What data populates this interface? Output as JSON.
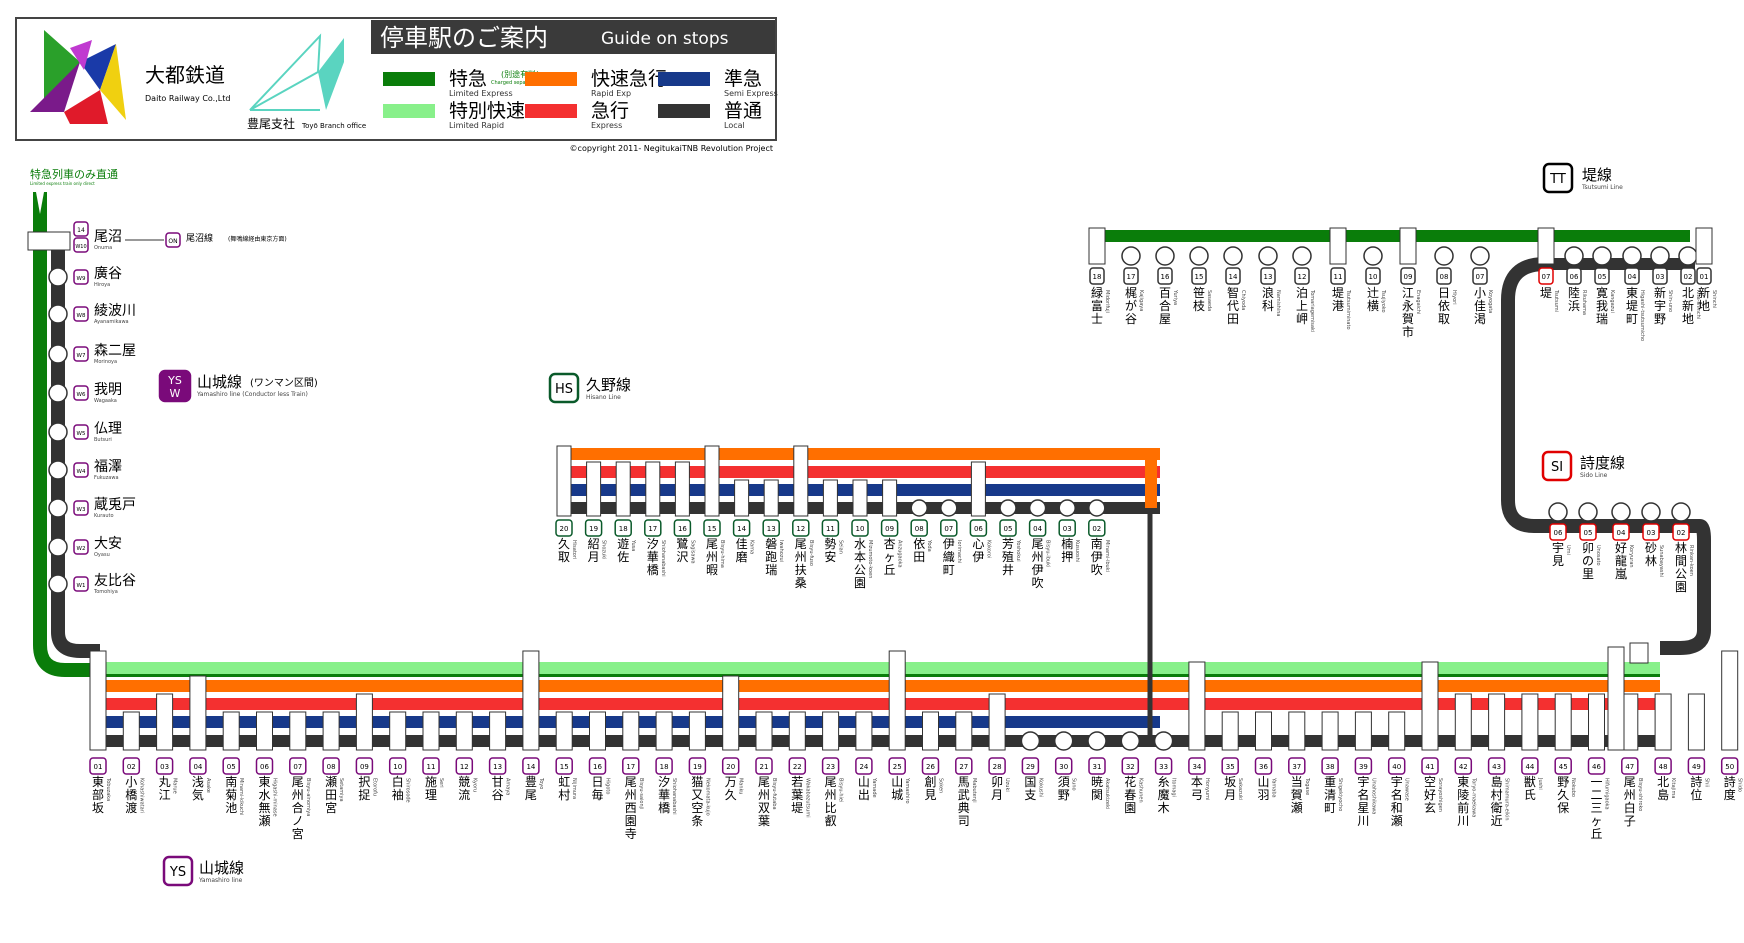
{
  "header": {
    "company_jp": "大都鉄道",
    "company_en": "Daito Railway Co.,Ltd",
    "office_jp": "豊尾支社",
    "office_en": "Toyō Branch office",
    "title_jp": "停車駅のご案内",
    "title_en": "Guide on stops",
    "copyright": "©copyright 2011- NegitukaiTNB Revolution Project"
  },
  "legend": [
    {
      "jp": "特急",
      "note": "(別途有料)",
      "note_en": "Charged separately",
      "en": "Limited Express",
      "color": "#0a7d0a"
    },
    {
      "jp": "特別快速",
      "note": "",
      "note_en": "",
      "en": "Limited Rapid",
      "color": "#88f08a"
    },
    {
      "jp": "快速急行",
      "note": "",
      "note_en": "",
      "en": "Rapid Exp",
      "color": "#ff6f00"
    },
    {
      "jp": "急行",
      "note": "",
      "note_en": "",
      "en": "Express",
      "color": "#f43030"
    },
    {
      "jp": "準急",
      "note": "",
      "note_en": "",
      "en": "Semi Express",
      "color": "#17398a"
    },
    {
      "jp": "普通",
      "note": "",
      "note_en": "",
      "en": "Local",
      "color": "#333333"
    }
  ],
  "colors": {
    "green": "#0a7d0a",
    "light_green": "#88f08a",
    "orange": "#ff6f00",
    "red": "#f43030",
    "navy": "#17398a",
    "local": "#333333",
    "purple": "#7a0a7a",
    "hs_green": "#0a5a2a",
    "si_red": "#e00000"
  },
  "lines": {
    "direct_note": "特急列車のみ直通",
    "direct_note_en": "Limited express train only direct",
    "ysw": {
      "code": "YSW",
      "name": "山城線",
      "suffix": "(ワンマン区間)",
      "en": "Yamashiro line (Conductor less Train)"
    },
    "ys": {
      "code": "YS",
      "name": "山城線",
      "en": "Yamashiro line"
    },
    "hs": {
      "code": "HS",
      "name": "久野線",
      "en": "Hisano Line"
    },
    "tt": {
      "code": "TT",
      "name": "堤線",
      "en": "Tsutsumi Line"
    },
    "si": {
      "code": "SI",
      "name": "詩度線",
      "en": "Sido Line"
    },
    "on_transfer": {
      "code": "ON",
      "name": "尾沼線",
      "note": "(舞鳴線経由東京方面)"
    }
  },
  "ysw_stations": [
    {
      "num": "W10",
      "jp": "尾沼",
      "en": "Onuma"
    },
    {
      "num": "W9",
      "jp": "廣谷",
      "en": "Hiroya"
    },
    {
      "num": "W8",
      "jp": "綾波川",
      "en": "Ayanamikawa"
    },
    {
      "num": "W7",
      "jp": "森二屋",
      "en": "Morinoya"
    },
    {
      "num": "W6",
      "jp": "我明",
      "en": "Wagaaka"
    },
    {
      "num": "W5",
      "jp": "仏理",
      "en": "Butsuri"
    },
    {
      "num": "W4",
      "jp": "福澤",
      "en": "Fukuzawa"
    },
    {
      "num": "W3",
      "jp": "蔵兎戸",
      "en": "Kurauto"
    },
    {
      "num": "W2",
      "jp": "大安",
      "en": "Oyasu"
    },
    {
      "num": "W1",
      "jp": "友比谷",
      "en": "Tomohiya"
    }
  ],
  "ys_stations": [
    {
      "num": "01",
      "jp": "東部坂",
      "en": "Tobuzaka"
    },
    {
      "num": "02",
      "jp": "小橋渡",
      "en": "Kohashiwatari"
    },
    {
      "num": "03",
      "jp": "丸江",
      "en": "Marue"
    },
    {
      "num": "04",
      "jp": "浅気",
      "en": "Asake"
    },
    {
      "num": "05",
      "jp": "南菊池",
      "en": "Minami-kikuchi"
    },
    {
      "num": "06",
      "jp": "東水無瀬",
      "en": "Higashi-minase"
    },
    {
      "num": "07",
      "jp": "尾州合ノ宮",
      "en": "Bisyu-ainomiya"
    },
    {
      "num": "08",
      "jp": "瀬田宮",
      "en": "Setamiya"
    },
    {
      "num": "09",
      "jp": "択捉",
      "en": "Etorofu"
    },
    {
      "num": "10",
      "jp": "白袖",
      "en": "Shirosode"
    },
    {
      "num": "11",
      "jp": "施理",
      "en": "Seri"
    },
    {
      "num": "12",
      "jp": "競流",
      "en": "Kyoru"
    },
    {
      "num": "13",
      "jp": "甘谷",
      "en": "Amaya"
    },
    {
      "num": "14",
      "jp": "豊尾",
      "en": "Toyo"
    },
    {
      "num": "15",
      "jp": "虹村",
      "en": "Nijimura"
    },
    {
      "num": "16",
      "jp": "日毎",
      "en": "Higoto"
    },
    {
      "num": "17",
      "jp": "尾州西園寺",
      "en": "Bisyu-saionji"
    },
    {
      "num": "18",
      "jp": "汐華橋",
      "en": "Shiohanabashi"
    },
    {
      "num": "19",
      "jp": "猫又空条",
      "en": "Nekomata-kujo"
    },
    {
      "num": "20",
      "jp": "万久",
      "en": "Manku"
    },
    {
      "num": "21",
      "jp": "尾州双葉",
      "en": "Bisyu-futaba"
    },
    {
      "num": "22",
      "jp": "若葉堤",
      "en": "Wakabazutsumi"
    },
    {
      "num": "23",
      "jp": "尾州比叡",
      "en": "Bisyu-hiei"
    },
    {
      "num": "24",
      "jp": "山出",
      "en": "Yamade"
    },
    {
      "num": "25",
      "jp": "山城",
      "en": "Yamashiro"
    },
    {
      "num": "26",
      "jp": "創見",
      "en": "Soken"
    },
    {
      "num": "27",
      "jp": "馬武典司",
      "en": "Mabutenji"
    },
    {
      "num": "28",
      "jp": "卯月",
      "en": "Uzuki"
    },
    {
      "num": "29",
      "jp": "国支",
      "en": "Kokushi"
    },
    {
      "num": "30",
      "jp": "須野",
      "en": "Suno"
    },
    {
      "num": "31",
      "jp": "暁関",
      "en": "Akatsukizeki"
    },
    {
      "num": "32",
      "jp": "花春園",
      "en": "Kashunen"
    },
    {
      "num": "33",
      "jp": "糸魔木",
      "en": "Itomagi"
    },
    {
      "num": "34",
      "jp": "本弓",
      "en": "Honyumi"
    },
    {
      "num": "35",
      "jp": "坂月",
      "en": "Sakazuki"
    },
    {
      "num": "36",
      "jp": "山羽",
      "en": "Yamaba"
    },
    {
      "num": "37",
      "jp": "当賀瀬",
      "en": "Togase"
    },
    {
      "num": "38",
      "jp": "重清町",
      "en": "Shigekiyocho"
    },
    {
      "num": "39",
      "jp": "宇名星川",
      "en": "Unahoshikawa"
    },
    {
      "num": "40",
      "jp": "宇名和瀬",
      "en": "Unawase"
    },
    {
      "num": "41",
      "jp": "空好玄",
      "en": "Sorayoshigen"
    },
    {
      "num": "42",
      "jp": "東陵前川",
      "en": "Toryo-maekawa"
    },
    {
      "num": "43",
      "jp": "島村衛近",
      "en": "Shimamura-eikin"
    },
    {
      "num": "44",
      "jp": "獣氏",
      "en": "Jushi"
    },
    {
      "num": "45",
      "jp": "野久保",
      "en": "Nokubo"
    },
    {
      "num": "46",
      "jp": "一二三ヶ丘",
      "en": "Hifumigaoka"
    },
    {
      "num": "47",
      "jp": "尾州白子",
      "en": "Bisyu-shiroko"
    },
    {
      "num": "48",
      "jp": "北島",
      "en": "Kitajima"
    },
    {
      "num": "49",
      "jp": "詩位",
      "en": "Shii"
    },
    {
      "num": "50",
      "jp": "詩度",
      "en": "Shido"
    }
  ],
  "hs_stations": [
    {
      "num": "20",
      "jp": "久取",
      "en": "Hisatori"
    },
    {
      "num": "19",
      "jp": "紹月",
      "en": "Shozuki"
    },
    {
      "num": "18",
      "jp": "遊佐",
      "en": "Yusa"
    },
    {
      "num": "17",
      "jp": "汐華橋",
      "en": "Shiohanabashi"
    },
    {
      "num": "16",
      "jp": "鷺沢",
      "en": "Sagisawa"
    },
    {
      "num": "15",
      "jp": "尾州暇",
      "en": "Bisyu-hima"
    },
    {
      "num": "14",
      "jp": "佳磨",
      "en": "Kama"
    },
    {
      "num": "13",
      "jp": "磐跑瑞",
      "en": "Iwahozui"
    },
    {
      "num": "12",
      "jp": "尾州扶桑",
      "en": "Bisyu-fuso"
    },
    {
      "num": "11",
      "jp": "勢安",
      "en": "Seian"
    },
    {
      "num": "10",
      "jp": "水本公園",
      "en": "Mizumoto-koen"
    },
    {
      "num": "09",
      "jp": "杏ヶ丘",
      "en": "Anzugaoka"
    },
    {
      "num": "08",
      "jp": "依田",
      "en": "Yoda"
    },
    {
      "num": "07",
      "jp": "伊織町",
      "en": "Iorimachi"
    },
    {
      "num": "06",
      "jp": "心伊",
      "en": "Kokoroi"
    },
    {
      "num": "05",
      "jp": "芳殖井",
      "en": "Yoshokui"
    },
    {
      "num": "04",
      "jp": "尾州伊吹",
      "en": "Bisyu-ibuki"
    },
    {
      "num": "03",
      "jp": "楠押",
      "en": "Kusuoshi"
    },
    {
      "num": "02",
      "jp": "南伊吹",
      "en": "Minami-ibuki"
    }
  ],
  "tt_stations": [
    {
      "num": "18",
      "jp": "緑富士",
      "en": "Midorifuji"
    },
    {
      "num": "17",
      "jp": "梶が谷",
      "en": "Kajigaya"
    },
    {
      "num": "16",
      "jp": "百合屋",
      "en": "Yuriya"
    },
    {
      "num": "15",
      "jp": "笹枝",
      "en": "Sasaeda"
    },
    {
      "num": "14",
      "jp": "智代田",
      "en": "Chiyoda"
    },
    {
      "num": "13",
      "jp": "浪科",
      "en": "Namishina"
    },
    {
      "num": "12",
      "jp": "泊上岬",
      "en": "Tomariagemisaki"
    },
    {
      "num": "11",
      "jp": "堤港",
      "en": "Tsutsumiminato"
    },
    {
      "num": "10",
      "jp": "辻横",
      "en": "Tsujiyoko"
    },
    {
      "num": "09",
      "jp": "江永賀市",
      "en": "Enagaichi"
    },
    {
      "num": "08",
      "jp": "日依取",
      "en": "Hiyori"
    },
    {
      "num": "07",
      "jp": "小佳渇",
      "en": "Koyogata"
    },
    {
      "num": "07",
      "jp": "堤",
      "en": "Tsutsumi"
    },
    {
      "num": "06",
      "jp": "陸浜",
      "en": "Rikuhama"
    },
    {
      "num": "05",
      "jp": "寛我瑞",
      "en": "Kangazui"
    },
    {
      "num": "04",
      "jp": "東堤町",
      "en": "Higashi-tsutsumicho"
    },
    {
      "num": "03",
      "jp": "新宇野",
      "en": "Shin-uno"
    },
    {
      "num": "02",
      "jp": "北新地",
      "en": "Kita-shinchi"
    },
    {
      "num": "01",
      "jp": "新地",
      "en": "Shinchi"
    }
  ],
  "si_stations": [
    {
      "num": "06",
      "jp": "宇見",
      "en": "Umi"
    },
    {
      "num": "05",
      "jp": "卯の里",
      "en": "Unosato"
    },
    {
      "num": "04",
      "jp": "好龍嵐",
      "en": "Koryuran"
    },
    {
      "num": "03",
      "jp": "砂林",
      "en": "Sunabayashi"
    },
    {
      "num": "02",
      "jp": "林間公園",
      "en": "Rinkan-koen"
    }
  ]
}
